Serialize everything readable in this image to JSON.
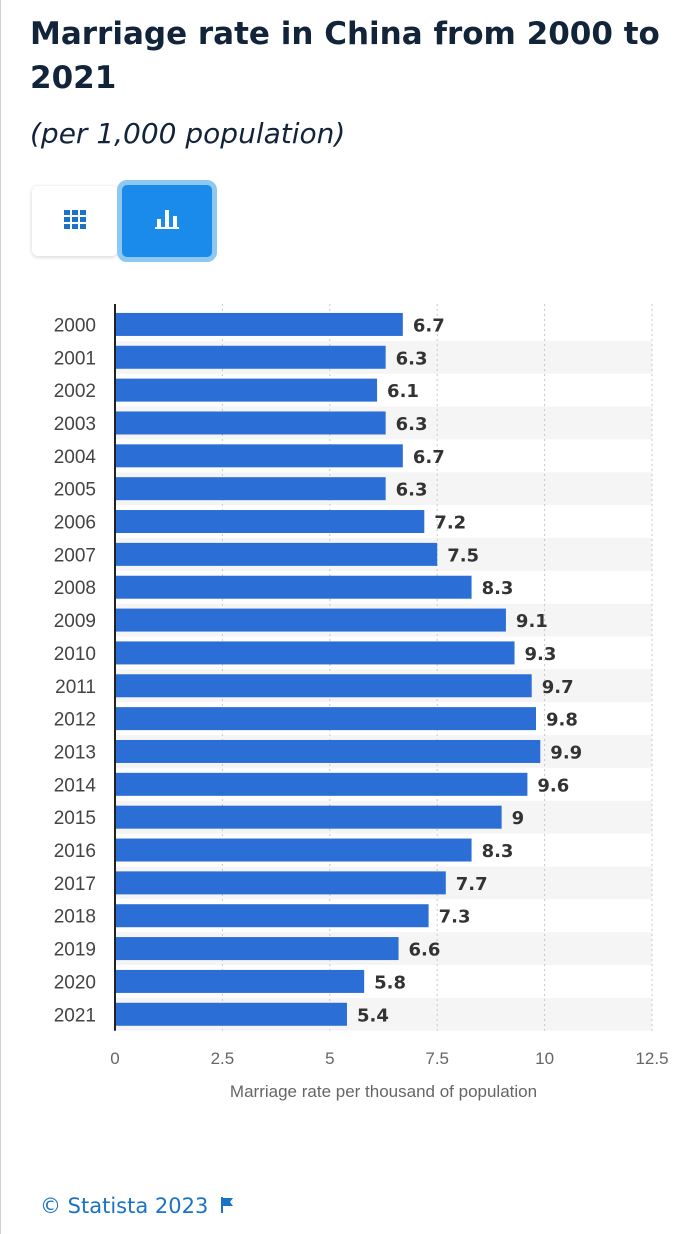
{
  "header": {
    "title": "Marriage rate in China from 2000 to 2021",
    "subtitle": "(per 1,000 population)"
  },
  "view_toggle": {
    "options": [
      {
        "icon": "table-grid-icon",
        "active": false
      },
      {
        "icon": "bar-chart-icon",
        "active": true
      }
    ]
  },
  "colors": {
    "bar": "#2b6fd6",
    "accent": "#1a8bea",
    "accent_border": "#8cc8f0",
    "stripe": "#f5f5f5",
    "axis": "#222222",
    "grid": "#c8c8c8",
    "footer": "#1a73c4"
  },
  "chart_data": {
    "type": "bar",
    "orientation": "horizontal",
    "categories": [
      "2000",
      "2001",
      "2002",
      "2003",
      "2004",
      "2005",
      "2006",
      "2007",
      "2008",
      "2009",
      "2010",
      "2011",
      "2012",
      "2013",
      "2014",
      "2015",
      "2016",
      "2017",
      "2018",
      "2019",
      "2020",
      "2021"
    ],
    "values": [
      6.7,
      6.3,
      6.1,
      6.3,
      6.7,
      6.3,
      7.2,
      7.5,
      8.3,
      9.1,
      9.3,
      9.7,
      9.8,
      9.9,
      9.6,
      9,
      8.3,
      7.7,
      7.3,
      6.6,
      5.8,
      5.4
    ],
    "xlabel": "Marriage rate per thousand of population",
    "ylabel": "",
    "xlim": [
      0,
      12.5
    ],
    "xticks": [
      "0",
      "2.5",
      "5",
      "7.5",
      "10",
      "12.5"
    ],
    "grid": "vertical dotted",
    "data_labels": true
  },
  "footer": {
    "copyright": "© Statista 2023",
    "flag_icon": "flag-icon"
  }
}
